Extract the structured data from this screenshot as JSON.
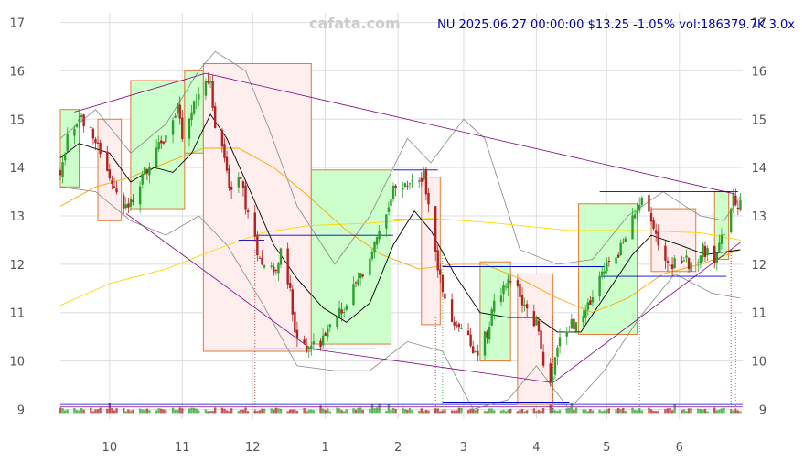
{
  "watermark": "cafata.com",
  "header_text": "NU 2025.06.27 00:00:00 $13.25 -1.05% vol:186379.7K 3.0x",
  "colors": {
    "up": "#2ca02c",
    "down": "#b22222",
    "box_up_fill": "#ccffcc",
    "box_down_fill": "#ffeeee",
    "box_stroke": "#e07b39",
    "grid": "#dddddd",
    "ma_fast": "#000000",
    "ma_mid": "#ffa500",
    "ma_slow": "#ffd700",
    "band": "#888888",
    "trend": "#800080",
    "level": "#0000cc"
  },
  "chart_data": {
    "type": "candlestick",
    "ticker": "NU",
    "last_date": "2025.06.27",
    "last_price": 13.25,
    "change_pct": -1.05,
    "volume": "186379.7K",
    "volume_ratio": "3.0x",
    "xlim": [
      "2024-09-10",
      "2025-06-28"
    ],
    "ylim": [
      8.8,
      17.2
    ],
    "y_ticks": [
      9,
      10,
      11,
      12,
      13,
      14,
      15,
      16,
      17
    ],
    "x_tick_labels": [
      {
        "label": "10",
        "date": "2024-10-01"
      },
      {
        "label": "11",
        "date": "2024-11-01"
      },
      {
        "label": "12",
        "date": "2024-12-01"
      },
      {
        "label": "1",
        "date": "2025-01-01"
      },
      {
        "label": "2",
        "date": "2025-02-01"
      },
      {
        "label": "3",
        "date": "2025-03-01"
      },
      {
        "label": "4",
        "date": "2025-04-01"
      },
      {
        "label": "5",
        "date": "2025-05-01"
      },
      {
        "label": "6",
        "date": "2025-06-01"
      }
    ],
    "close_path": [
      [
        "2024-09-10",
        13.8
      ],
      [
        "2024-09-13",
        14.6
      ],
      [
        "2024-09-18",
        15.0
      ],
      [
        "2024-09-23",
        14.9
      ],
      [
        "2024-09-26",
        14.4
      ],
      [
        "2024-10-01",
        13.8
      ],
      [
        "2024-10-04",
        13.4
      ],
      [
        "2024-10-08",
        13.1
      ],
      [
        "2024-10-11",
        13.3
      ],
      [
        "2024-10-16",
        13.9
      ],
      [
        "2024-10-21",
        14.3
      ],
      [
        "2024-10-25",
        14.7
      ],
      [
        "2024-10-30",
        15.2
      ],
      [
        "2024-11-01",
        14.6
      ],
      [
        "2024-11-05",
        15.1
      ],
      [
        "2024-11-08",
        15.6
      ],
      [
        "2024-11-11",
        15.9
      ],
      [
        "2024-11-13",
        15.7
      ],
      [
        "2024-11-15",
        14.8
      ],
      [
        "2024-11-19",
        14.2
      ],
      [
        "2024-11-22",
        13.4
      ],
      [
        "2024-11-26",
        13.8
      ],
      [
        "2024-11-29",
        13.0
      ],
      [
        "2024-12-03",
        12.3
      ],
      [
        "2024-12-06",
        12.0
      ],
      [
        "2024-12-10",
        11.9
      ],
      [
        "2024-12-13",
        12.2
      ],
      [
        "2024-12-17",
        11.4
      ],
      [
        "2024-12-19",
        10.5
      ],
      [
        "2024-12-23",
        10.3
      ],
      [
        "2024-12-30",
        10.4
      ],
      [
        "2025-01-03",
        10.9
      ],
      [
        "2025-01-08",
        11.0
      ],
      [
        "2025-01-13",
        11.5
      ],
      [
        "2025-01-17",
        11.8
      ],
      [
        "2025-01-22",
        12.4
      ],
      [
        "2025-01-27",
        12.9
      ],
      [
        "2025-01-30",
        13.5
      ],
      [
        "2025-02-04",
        13.6
      ],
      [
        "2025-02-07",
        13.7
      ],
      [
        "2025-02-12",
        13.8
      ],
      [
        "2025-02-14",
        13.3
      ],
      [
        "2025-02-18",
        11.9
      ],
      [
        "2025-02-21",
        11.2
      ],
      [
        "2025-02-26",
        10.7
      ],
      [
        "2025-03-03",
        10.6
      ],
      [
        "2025-03-06",
        10.1
      ],
      [
        "2025-03-11",
        10.6
      ],
      [
        "2025-03-14",
        11.3
      ],
      [
        "2025-03-19",
        11.6
      ],
      [
        "2025-03-24",
        11.5
      ],
      [
        "2025-03-28",
        11.0
      ],
      [
        "2025-04-02",
        10.7
      ],
      [
        "2025-04-04",
        9.9
      ],
      [
        "2025-04-08",
        9.6
      ],
      [
        "2025-04-10",
        10.4
      ],
      [
        "2025-04-15",
        10.7
      ],
      [
        "2025-04-21",
        10.9
      ],
      [
        "2025-04-25",
        11.3
      ],
      [
        "2025-04-30",
        11.9
      ],
      [
        "2025-05-05",
        12.2
      ],
      [
        "2025-05-09",
        12.5
      ],
      [
        "2025-05-14",
        13.2
      ],
      [
        "2025-05-16",
        13.5
      ],
      [
        "2025-05-20",
        12.9
      ],
      [
        "2025-05-23",
        12.4
      ],
      [
        "2025-05-28",
        12.0
      ],
      [
        "2025-06-02",
        12.1
      ],
      [
        "2025-06-06",
        12.0
      ],
      [
        "2025-06-11",
        12.3
      ],
      [
        "2025-06-16",
        12.1
      ],
      [
        "2025-06-20",
        12.7
      ],
      [
        "2025-06-24",
        13.4
      ],
      [
        "2025-06-27",
        13.25
      ]
    ],
    "boxes": [
      {
        "start": "2024-09-10",
        "end": "2024-09-18",
        "low": 13.6,
        "high": 15.2,
        "dir": "up"
      },
      {
        "start": "2024-09-26",
        "end": "2024-10-06",
        "low": 12.9,
        "high": 15.0,
        "dir": "down"
      },
      {
        "start": "2024-10-10",
        "end": "2024-11-02",
        "low": 13.15,
        "high": 15.8,
        "dir": "up"
      },
      {
        "start": "2024-11-02",
        "end": "2024-11-10",
        "low": 14.3,
        "high": 16.0,
        "dir": "up"
      },
      {
        "start": "2024-11-10",
        "end": "2024-12-26",
        "low": 10.2,
        "high": 16.15,
        "dir": "down"
      },
      {
        "start": "2024-12-26",
        "end": "2025-01-29",
        "low": 10.35,
        "high": 13.95,
        "dir": "up"
      },
      {
        "start": "2025-02-11",
        "end": "2025-02-19",
        "low": 10.75,
        "high": 13.8,
        "dir": "down"
      },
      {
        "start": "2025-03-08",
        "end": "2025-03-21",
        "low": 10.0,
        "high": 12.05,
        "dir": "up"
      },
      {
        "start": "2025-03-24",
        "end": "2025-04-08",
        "low": 9.1,
        "high": 11.8,
        "dir": "down"
      },
      {
        "start": "2025-04-19",
        "end": "2025-05-14",
        "low": 10.55,
        "high": 13.25,
        "dir": "up"
      },
      {
        "start": "2025-05-20",
        "end": "2025-06-08",
        "low": 11.85,
        "high": 13.15,
        "dir": "down"
      },
      {
        "start": "2025-06-16",
        "end": "2025-06-22",
        "low": 12.1,
        "high": 13.5,
        "dir": "up"
      }
    ],
    "trend_lines": [
      [
        [
          "2024-09-16",
          15.15
        ],
        [
          "2024-11-11",
          15.95
        ]
      ],
      [
        [
          "2024-11-11",
          15.95
        ],
        [
          "2025-06-25",
          13.45
        ]
      ],
      [
        [
          "2024-10-08",
          13.05
        ],
        [
          "2024-12-26",
          10.25
        ]
      ],
      [
        [
          "2024-12-26",
          10.25
        ],
        [
          "2025-04-08",
          9.55
        ]
      ],
      [
        [
          "2025-04-08",
          9.55
        ],
        [
          "2025-06-27",
          12.45
        ]
      ]
    ],
    "levels": [
      {
        "start": "2024-12-02",
        "end": "2025-01-30",
        "y": 12.6
      },
      {
        "start": "2024-11-25",
        "end": "2024-12-06",
        "y": 12.5
      },
      {
        "start": "2024-12-01",
        "end": "2025-01-22",
        "y": 10.25
      },
      {
        "start": "2025-01-30",
        "end": "2025-02-18",
        "y": 13.95
      },
      {
        "start": "2025-01-30",
        "end": "2025-02-18",
        "y": 12.92
      },
      {
        "start": "2025-02-20",
        "end": "2025-04-30",
        "y": 11.95
      },
      {
        "start": "2025-02-20",
        "end": "2025-04-15",
        "y": 9.15
      },
      {
        "start": "2025-04-28",
        "end": "2025-06-26",
        "y": 13.5
      },
      {
        "start": "2025-04-28",
        "end": "2025-06-21",
        "y": 11.75
      }
    ],
    "ma_fast": [
      [
        "2024-09-10",
        14.2
      ],
      [
        "2024-09-18",
        14.5
      ],
      [
        "2024-10-01",
        14.3
      ],
      [
        "2024-10-10",
        13.7
      ],
      [
        "2024-10-20",
        14.0
      ],
      [
        "2024-10-28",
        13.9
      ],
      [
        "2024-11-05",
        14.3
      ],
      [
        "2024-11-13",
        15.1
      ],
      [
        "2024-11-20",
        14.6
      ],
      [
        "2024-12-01",
        13.4
      ],
      [
        "2024-12-10",
        12.4
      ],
      [
        "2024-12-20",
        11.7
      ],
      [
        "2024-12-31",
        11.1
      ],
      [
        "2025-01-10",
        10.8
      ],
      [
        "2025-01-20",
        11.2
      ],
      [
        "2025-01-30",
        12.4
      ],
      [
        "2025-02-08",
        13.1
      ],
      [
        "2025-02-15",
        12.7
      ],
      [
        "2025-02-25",
        11.8
      ],
      [
        "2025-03-08",
        11.0
      ],
      [
        "2025-03-20",
        10.9
      ],
      [
        "2025-04-01",
        10.9
      ],
      [
        "2025-04-10",
        10.6
      ],
      [
        "2025-04-20",
        10.6
      ],
      [
        "2025-05-01",
        11.4
      ],
      [
        "2025-05-12",
        12.2
      ],
      [
        "2025-05-20",
        12.6
      ],
      [
        "2025-06-01",
        12.4
      ],
      [
        "2025-06-12",
        12.2
      ],
      [
        "2025-06-27",
        12.3
      ]
    ],
    "ma_mid": [
      [
        "2024-09-10",
        13.2
      ],
      [
        "2024-09-25",
        13.6
      ],
      [
        "2024-10-10",
        13.8
      ],
      [
        "2024-10-25",
        14.1
      ],
      [
        "2024-11-10",
        14.4
      ],
      [
        "2024-11-25",
        14.4
      ],
      [
        "2024-12-10",
        14.0
      ],
      [
        "2024-12-25",
        13.4
      ],
      [
        "2025-01-10",
        12.7
      ],
      [
        "2025-01-25",
        12.2
      ],
      [
        "2025-02-10",
        11.9
      ],
      [
        "2025-02-25",
        12.0
      ],
      [
        "2025-03-10",
        12.0
      ],
      [
        "2025-03-25",
        11.7
      ],
      [
        "2025-04-10",
        11.3
      ],
      [
        "2025-04-25",
        11.0
      ],
      [
        "2025-05-10",
        11.3
      ],
      [
        "2025-05-25",
        11.8
      ],
      [
        "2025-06-10",
        12.0
      ],
      [
        "2025-06-27",
        12.3
      ]
    ],
    "ma_slow": [
      [
        "2024-09-10",
        11.15
      ],
      [
        "2024-10-01",
        11.6
      ],
      [
        "2024-10-25",
        11.9
      ],
      [
        "2024-11-15",
        12.3
      ],
      [
        "2024-12-05",
        12.65
      ],
      [
        "2024-12-25",
        12.8
      ],
      [
        "2025-01-20",
        12.85
      ],
      [
        "2025-02-15",
        12.95
      ],
      [
        "2025-03-15",
        12.85
      ],
      [
        "2025-04-15",
        12.7
      ],
      [
        "2025-05-15",
        12.7
      ],
      [
        "2025-06-10",
        12.65
      ],
      [
        "2025-06-27",
        12.5
      ]
    ],
    "band_upper": [
      [
        "2024-09-10",
        14.6
      ],
      [
        "2024-09-25",
        15.2
      ],
      [
        "2024-10-10",
        14.3
      ],
      [
        "2024-10-25",
        14.9
      ],
      [
        "2024-11-08",
        16.0
      ],
      [
        "2024-11-15",
        16.4
      ],
      [
        "2024-11-28",
        16.0
      ],
      [
        "2024-12-08",
        14.8
      ],
      [
        "2024-12-20",
        13.2
      ],
      [
        "2025-01-05",
        12.0
      ],
      [
        "2025-01-20",
        13.0
      ],
      [
        "2025-02-05",
        14.6
      ],
      [
        "2025-02-15",
        14.1
      ],
      [
        "2025-03-01",
        15.0
      ],
      [
        "2025-03-10",
        14.6
      ],
      [
        "2025-03-25",
        12.3
      ],
      [
        "2025-04-10",
        12.0
      ],
      [
        "2025-04-25",
        12.1
      ],
      [
        "2025-05-10",
        13.0
      ],
      [
        "2025-05-25",
        13.5
      ],
      [
        "2025-06-10",
        13.0
      ],
      [
        "2025-06-20",
        12.9
      ],
      [
        "2025-06-27",
        13.4
      ]
    ],
    "band_lower": [
      [
        "2024-09-10",
        13.6
      ],
      [
        "2024-09-25",
        13.5
      ],
      [
        "2024-10-10",
        12.9
      ],
      [
        "2024-10-25",
        12.6
      ],
      [
        "2024-11-08",
        13.0
      ],
      [
        "2024-11-20",
        12.4
      ],
      [
        "2024-12-05",
        11.2
      ],
      [
        "2024-12-20",
        9.9
      ],
      [
        "2025-01-05",
        9.8
      ],
      [
        "2025-01-20",
        9.8
      ],
      [
        "2025-02-05",
        10.4
      ],
      [
        "2025-02-20",
        10.2
      ],
      [
        "2025-03-05",
        9.0
      ],
      [
        "2025-03-20",
        9.2
      ],
      [
        "2025-04-01",
        9.9
      ],
      [
        "2025-04-15",
        9.0
      ],
      [
        "2025-04-30",
        9.8
      ],
      [
        "2025-05-15",
        10.9
      ],
      [
        "2025-05-30",
        11.8
      ],
      [
        "2025-06-15",
        11.4
      ],
      [
        "2025-06-27",
        11.3
      ]
    ],
    "signal_dates": [
      "2024-12-02",
      "2024-12-19",
      "2025-02-17",
      "2025-02-20",
      "2025-04-08",
      "2025-05-15",
      "2025-06-23",
      "2025-06-25"
    ]
  }
}
